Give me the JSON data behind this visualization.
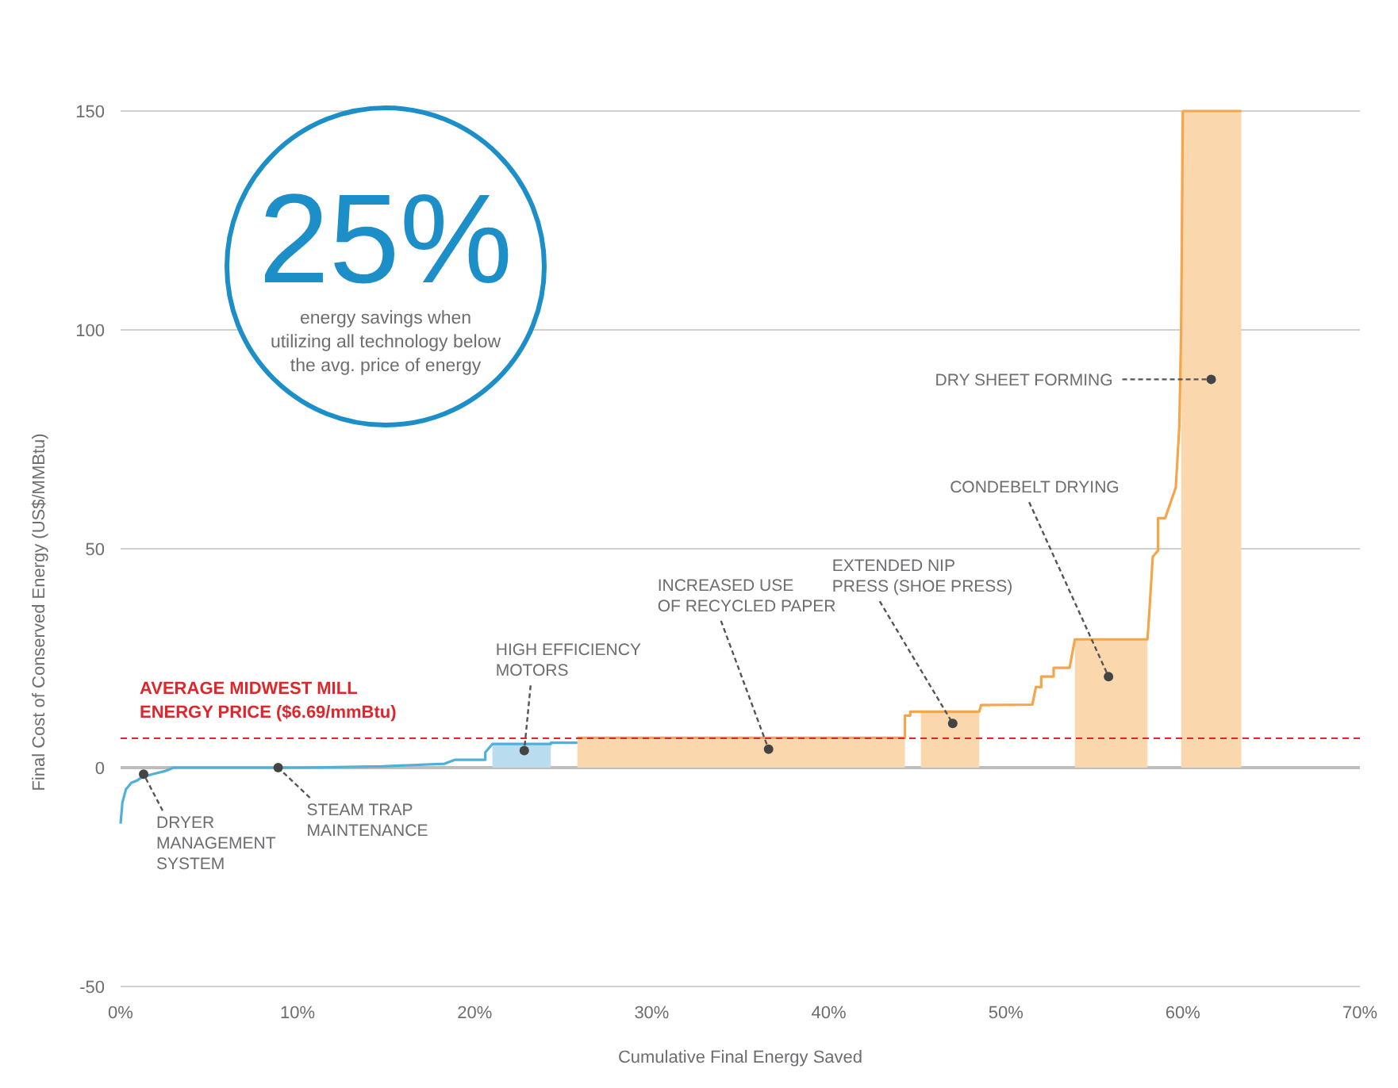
{
  "chart_data": {
    "type": "line",
    "xlabel": "Cumulative Final Energy Saved",
    "ylabel": "Final Cost of Conserved Energy (US$/MMBtu)",
    "xlim": [
      0,
      70
    ],
    "xticks": [
      {
        "value": 0,
        "label": "0%"
      },
      {
        "value": 10,
        "label": "10%"
      },
      {
        "value": 20,
        "label": "20%"
      },
      {
        "value": 30,
        "label": "30%"
      },
      {
        "value": 40,
        "label": "40%"
      },
      {
        "value": 50,
        "label": "50%"
      },
      {
        "value": 60,
        "label": "60%"
      },
      {
        "value": 70,
        "label": "70%"
      }
    ],
    "ylim": [
      -50,
      150
    ],
    "yticks": [
      -50,
      0,
      50,
      100,
      150
    ],
    "grid": "y",
    "series": [
      {
        "type": "area",
        "color": "#b9dcef",
        "x": [
          21.0,
          24.3
        ],
        "values": [
          5.4,
          5.4
        ]
      },
      {
        "type": "area",
        "color": "#fbd7ae",
        "x": [
          25.8,
          44.3
        ],
        "values": [
          6.8,
          6.8
        ]
      },
      {
        "type": "area",
        "color": "#fbd7ae",
        "x": [
          45.2,
          48.5
        ],
        "values": [
          12.8,
          12.8
        ]
      },
      {
        "type": "area",
        "color": "#fbd7ae",
        "x": [
          53.9,
          58.0
        ],
        "values": [
          29.3,
          29.3
        ]
      },
      {
        "type": "area",
        "color": "#fbd7ae",
        "x": [
          59.9,
          63.3
        ],
        "values": [
          150,
          150
        ]
      },
      {
        "color": "#4fb0d9",
        "x": [
          0,
          0.1,
          0.3,
          0.6,
          0.9,
          1.2,
          1.8,
          2.5,
          3.0,
          10.2,
          14.8,
          18.3,
          18.9,
          20.6,
          20.6,
          21.0,
          24.3,
          24.3,
          25.8
        ],
        "values": [
          -12.8,
          -8,
          -5,
          -3.5,
          -3.0,
          -2.2,
          -1.5,
          -0.8,
          0,
          0,
          0.3,
          0.9,
          1.8,
          1.8,
          3.5,
          5.4,
          5.4,
          5.7,
          5.7
        ]
      },
      {
        "color": "#f5a54a",
        "x": [
          25.8,
          44.3,
          44.3,
          44.6,
          44.6,
          48.5,
          48.6,
          51.5,
          51.7,
          52.0,
          52.0,
          52.7,
          52.7,
          53.6,
          53.9,
          58.0,
          58.1,
          58.3,
          58.6,
          58.6,
          59.0,
          59.6,
          59.8,
          59.9,
          60.0,
          63.3
        ],
        "values": [
          6.8,
          6.8,
          11.9,
          11.9,
          12.8,
          12.8,
          14.3,
          14.4,
          18.4,
          18.4,
          20.8,
          20.8,
          22.8,
          22.8,
          29.3,
          29.3,
          35.2,
          48.2,
          49.6,
          57.0,
          57.0,
          64,
          77.9,
          99.7,
          150,
          150
        ]
      }
    ],
    "ref_lines": [
      {
        "axis": "y",
        "value": 6.69,
        "label": "AVERAGE MIDWEST MILL\nENERGY PRICE ($6.69/mmBtu)",
        "color": "#e0262b",
        "line_style": "dashed"
      }
    ],
    "annotations": [
      "25%",
      "energy savings when\nutilizing all technology below\nthe avg. price of energy",
      {
        "text": "DRYER\nMANAGEMENT\nSYSTEM",
        "x": 1.3,
        "y": -1.5
      },
      {
        "text": "STEAM TRAP\nMAINTENANCE",
        "x": 8.9,
        "y": 0
      },
      {
        "text": "HIGH EFFICIENCY\nMOTORS",
        "x": 22.8,
        "y": 3.9
      },
      {
        "text": "INCREASED USE\nOF RECYCLED PAPER",
        "x": 36.6,
        "y": 4.2
      },
      {
        "text": "EXTENDED NIP\nPRESS (SHOE PRESS)",
        "x": 47.0,
        "y": 10.1
      },
      {
        "text": "CONDEBELT DRYING",
        "x": 55.8,
        "y": 20.8
      },
      {
        "text": "DRY SHEET FORMING",
        "x": 61.6,
        "y": 88.7
      }
    ]
  }
}
